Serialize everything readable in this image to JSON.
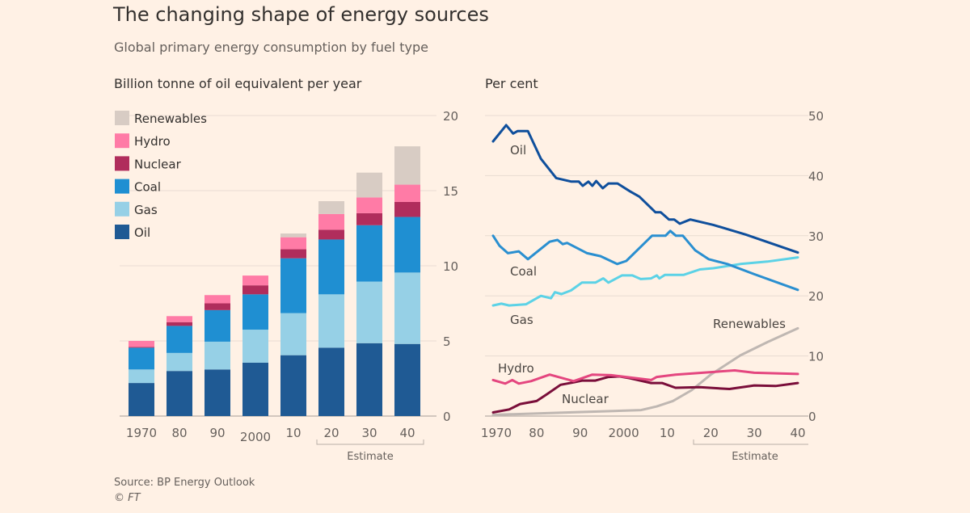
{
  "title": "The changing shape of energy sources",
  "subtitle": "Global primary energy consumption by fuel type",
  "source": "Source: BP Energy Outlook",
  "copyright": "© FT",
  "chart_data": [
    {
      "type": "bar",
      "stacked": true,
      "ylabel": "Billion tonne of oil equivalent per year",
      "ylim": [
        0,
        20
      ],
      "yticks": [
        "0",
        "5",
        "10",
        "15",
        "20"
      ],
      "grid": true,
      "legend": "top-left",
      "categories": [
        "1970",
        "80",
        "90",
        "2000",
        "10",
        "20",
        "30",
        "40"
      ],
      "annotation": "Estimate",
      "annotation_range": [
        "20",
        "40"
      ],
      "series": [
        {
          "name": "Oil",
          "color": "#1f5a94",
          "values": [
            2.2,
            3.0,
            3.1,
            3.55,
            4.05,
            4.55,
            4.85,
            4.8
          ]
        },
        {
          "name": "Gas",
          "color": "#96d0e6",
          "values": [
            0.9,
            1.2,
            1.85,
            2.2,
            2.8,
            3.55,
            4.1,
            4.75
          ]
        },
        {
          "name": "Coal",
          "color": "#1f8fd2",
          "values": [
            1.45,
            1.8,
            2.1,
            2.35,
            3.65,
            3.65,
            3.75,
            3.7
          ]
        },
        {
          "name": "Nuclear",
          "color": "#b02d5c",
          "values": [
            0.05,
            0.25,
            0.45,
            0.6,
            0.6,
            0.65,
            0.8,
            1.0
          ]
        },
        {
          "name": "Hydro",
          "color": "#ff7ba6",
          "values": [
            0.4,
            0.4,
            0.55,
            0.65,
            0.8,
            1.05,
            1.05,
            1.15
          ]
        },
        {
          "name": "Renewables",
          "color": "#d8ccc4",
          "values": [
            0,
            0,
            0,
            0,
            0.25,
            0.85,
            1.65,
            2.55
          ]
        }
      ]
    },
    {
      "type": "line",
      "ylabel": "Per cent",
      "ylim": [
        0,
        50
      ],
      "yticks": [
        "0",
        "10",
        "20",
        "30",
        "40",
        "50"
      ],
      "xlim": [
        1970,
        2040
      ],
      "xticks": [
        {
          "v": 1970,
          "label": "1970"
        },
        {
          "v": 1980,
          "label": "80"
        },
        {
          "v": 1990,
          "label": "90"
        },
        {
          "v": 2000,
          "label": "2000"
        },
        {
          "v": 2010,
          "label": "10"
        },
        {
          "v": 2020,
          "label": "20"
        },
        {
          "v": 2030,
          "label": "30"
        },
        {
          "v": 2040,
          "label": "40"
        }
      ],
      "grid": true,
      "annotation": "Estimate",
      "annotation_range": [
        2019,
        2040
      ],
      "series": [
        {
          "name": "Oil",
          "color": "#0f4f9c",
          "x": [
            1970,
            1973,
            1974.6,
            1975.6,
            1978,
            1981,
            1984.5,
            1988,
            1989.7,
            1990.6,
            1991.9,
            1992.8,
            1993.7,
            1995.2,
            1996.5,
            1998.6,
            2001.4,
            2003.6,
            2007.3,
            2008.5,
            2010.4,
            2011.6,
            2012.9,
            2015.3,
            2020.6,
            2028,
            2040
          ],
          "y": [
            45.7,
            48.4,
            47.0,
            47.4,
            47.4,
            42.8,
            39.6,
            39.0,
            39.0,
            38.3,
            39.0,
            38.3,
            39.1,
            37.9,
            38.7,
            38.7,
            37.4,
            36.5,
            33.9,
            33.9,
            32.7,
            32.7,
            32.0,
            32.7,
            31.8,
            30.2,
            27.2
          ]
        },
        {
          "name": "Coal",
          "color": "#2a8fd0",
          "x": [
            1970,
            1971.5,
            1973.4,
            1975.9,
            1978,
            1983,
            1984.8,
            1986,
            1987,
            1991.6,
            1994.7,
            1998.5,
            2000.6,
            2003.4,
            2006.5,
            2009.6,
            2010.7,
            2012,
            2013.6,
            2016.4,
            2019.5,
            2023.8,
            2030,
            2040
          ],
          "y": [
            30.0,
            28.3,
            27.1,
            27.4,
            26.1,
            29.0,
            29.3,
            28.6,
            28.8,
            27.1,
            26.6,
            25.3,
            25.8,
            27.8,
            30.0,
            30.0,
            30.8,
            30.0,
            30.0,
            27.6,
            26.1,
            25.3,
            23.6,
            21.0
          ]
        },
        {
          "name": "Gas",
          "color": "#5cd2e6",
          "x": [
            1970,
            1971.9,
            1973.7,
            1977.6,
            1981,
            1983.3,
            1984.2,
            1985.7,
            1987.9,
            1990.4,
            1993.5,
            1995.3,
            1996.5,
            1999.6,
            2002,
            2003.9,
            2006.3,
            2007.6,
            2008.2,
            2009.5,
            2013.8,
            2017.5,
            2020.6,
            2026.8,
            2033,
            2040
          ],
          "y": [
            18.4,
            18.7,
            18.4,
            18.6,
            20.0,
            19.6,
            20.6,
            20.3,
            20.9,
            22.2,
            22.2,
            22.9,
            22.2,
            23.4,
            23.4,
            22.8,
            22.9,
            23.4,
            22.9,
            23.5,
            23.5,
            24.4,
            24.6,
            25.3,
            25.7,
            26.4
          ]
        },
        {
          "name": "Hydro",
          "color": "#e4467f",
          "x": [
            1970,
            1972.8,
            1974.4,
            1975.9,
            1978.7,
            1983,
            1988.5,
            1992.8,
            1997.1,
            2006.3,
            2007.6,
            2011.9,
            2025.5,
            2030,
            2040
          ],
          "y": [
            6.0,
            5.4,
            6.0,
            5.4,
            5.8,
            6.9,
            5.8,
            6.9,
            6.8,
            6.0,
            6.5,
            6.9,
            7.6,
            7.2,
            7.0
          ]
        },
        {
          "name": "Nuclear",
          "color": "#7a0e3a",
          "x": [
            1970,
            1973.7,
            1976.2,
            1980,
            1982.3,
            1985.5,
            1988.5,
            1990.4,
            1993.5,
            1996.5,
            1999,
            2001.4,
            2006.3,
            2008.8,
            2011.9,
            2017.5,
            2024.3,
            2030,
            2034.9,
            2040
          ],
          "y": [
            0.6,
            1.1,
            2.0,
            2.5,
            3.6,
            5.2,
            5.6,
            5.9,
            5.9,
            6.5,
            6.6,
            6.3,
            5.5,
            5.5,
            4.7,
            4.8,
            4.5,
            5.1,
            5.0,
            5.5
          ]
        },
        {
          "name": "Renewables",
          "color": "#bfb7b2",
          "x": [
            1970,
            2004,
            2007.6,
            2011.3,
            2015.6,
            2020,
            2026.8,
            2033,
            2040
          ],
          "y": [
            0.2,
            1.0,
            1.6,
            2.5,
            4.3,
            6.9,
            10.1,
            12.3,
            14.6
          ]
        }
      ]
    }
  ]
}
